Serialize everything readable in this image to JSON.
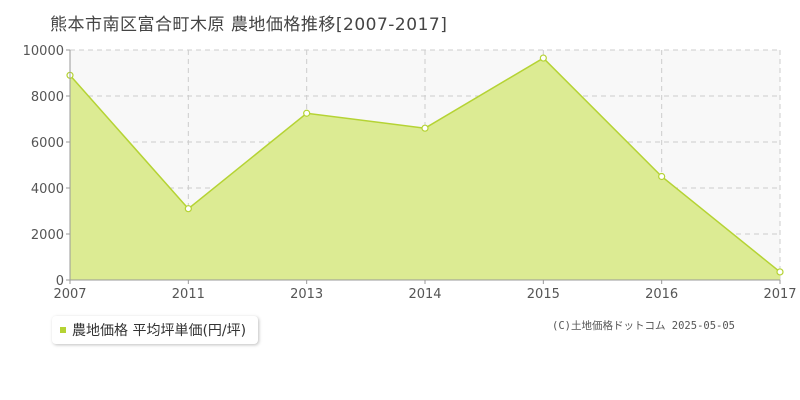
{
  "chart_data": {
    "type": "area",
    "title": "熊本市南区富合町木原 農地価格推移[2007-2017]",
    "x": [
      "2007",
      "2011",
      "2013",
      "2014",
      "2015",
      "2016",
      "2017"
    ],
    "series": [
      {
        "name": "農地価格 平均坪単価(円/坪)",
        "values": [
          8900,
          3100,
          7250,
          6600,
          9650,
          4500,
          350
        ]
      }
    ],
    "ylim": [
      0,
      10000
    ],
    "yticks": [
      "0",
      "2000",
      "4000",
      "6000",
      "8000",
      "10000"
    ],
    "grid": true,
    "legend_position": "bottom-left"
  },
  "colors": {
    "fill": "#dceb93",
    "line": "#b5d334",
    "grid": "#cccccc",
    "plot_bg": "#f8f8f8"
  },
  "copyright": "(C)土地価格ドットコム 2025-05-05"
}
